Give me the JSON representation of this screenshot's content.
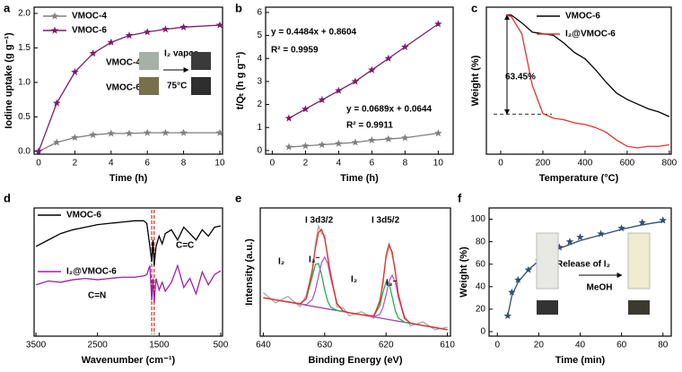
{
  "chart_data": [
    {
      "type": "line",
      "panel": "a",
      "xlabel": "Time (h)",
      "ylabel": "Iodine uptake (g g⁻¹)",
      "x": [
        0,
        1,
        2,
        3,
        4,
        5,
        6,
        7,
        8,
        10
      ],
      "xlim": [
        -0.25,
        10.15
      ],
      "xticks": [
        0,
        2,
        4,
        6,
        8,
        10
      ],
      "ylim": [
        -0.04,
        2.09
      ],
      "yticks": [
        {
          "value": 0,
          "label": "0.0"
        },
        {
          "value": 0.5,
          "label": "0.5"
        },
        {
          "value": 1,
          "label": "1.0"
        },
        {
          "value": 1.5,
          "label": "1.5"
        },
        {
          "value": 2,
          "label": "2.0"
        }
      ],
      "series": [
        {
          "name": "VMOC-4",
          "color": "#7f7f7f",
          "marker": "star",
          "values": [
            0,
            0.13,
            0.2,
            0.24,
            0.26,
            0.26,
            0.27,
            0.27,
            0.27,
            0.27
          ]
        },
        {
          "name": "VMOC-6",
          "color": "#7b1c6b",
          "marker": "star",
          "values": [
            0,
            0.7,
            1.15,
            1.42,
            1.58,
            1.68,
            1.73,
            1.77,
            1.8,
            1.83
          ]
        }
      ],
      "annotations": [
        "VMOC-4",
        "VMOC-6",
        "I₂ vapor",
        "75°C"
      ]
    },
    {
      "type": "line",
      "panel": "b",
      "xlabel": "Time (h)",
      "ylabel": "t/Qₜ (h g g⁻¹)",
      "x": [
        1,
        2,
        3,
        4,
        5,
        6,
        7,
        8,
        10
      ],
      "xlim": [
        -0.4,
        10.9
      ],
      "xticks": [
        0,
        2,
        4,
        6,
        8,
        10
      ],
      "ylim": [
        -0.16,
        6.23
      ],
      "yticks": [
        0,
        1,
        2,
        3,
        4,
        5,
        6
      ],
      "series": [
        {
          "color": "#7b1c6b",
          "marker": "star",
          "values": [
            1.4,
            1.8,
            2.2,
            2.6,
            3.0,
            3.5,
            4.0,
            4.5,
            5.5
          ]
        },
        {
          "color": "#7f7f7f",
          "marker": "star",
          "values": [
            0.15,
            0.2,
            0.25,
            0.3,
            0.35,
            0.45,
            0.5,
            0.55,
            0.75
          ]
        }
      ],
      "annotations": [
        "y = 0.4484x + 0.8604",
        "R² = 0.9959",
        "y = 0.0689x + 0.0644",
        "R² = 0.9911"
      ]
    },
    {
      "type": "line",
      "panel": "c",
      "xlabel": "Temperature (°C)",
      "ylabel": "Weight (%)",
      "x": [
        25,
        50,
        100,
        150,
        200,
        250,
        300,
        350,
        400,
        450,
        500,
        550,
        600,
        650,
        700,
        750,
        800
      ],
      "xlim": [
        -68,
        809
      ],
      "xticks": [
        0,
        200,
        400,
        600,
        800
      ],
      "ylim": [
        11,
        105
      ],
      "hline": 36.55,
      "series": [
        {
          "name": "VMOC-6",
          "color": "#000000",
          "values": [
            100,
            100,
            95,
            89,
            88,
            87,
            82,
            76,
            72,
            65,
            57,
            50,
            46,
            43,
            40,
            38,
            35
          ]
        },
        {
          "name": "I₂@VMOC-6",
          "color": "#e8302a",
          "values": [
            100,
            99,
            88,
            55,
            37,
            34,
            33,
            31,
            30,
            28,
            25,
            20,
            16,
            15,
            16,
            16,
            17
          ]
        }
      ],
      "annotations": [
        "63.45%"
      ]
    },
    {
      "type": "line",
      "panel": "d",
      "xlabel": "Wavenumber (cm⁻¹)",
      "x": [
        3500,
        3300,
        3100,
        2900,
        2700,
        2500,
        2300,
        2100,
        1900,
        1750,
        1700,
        1650,
        1620,
        1600,
        1580,
        1550,
        1500,
        1450,
        1400,
        1300,
        1200,
        1100,
        1000,
        900,
        800,
        700,
        600,
        500
      ],
      "xlim": [
        3530,
        470
      ],
      "xticks": [
        3500,
        2500,
        1500,
        500
      ],
      "ylim": [
        0,
        10
      ],
      "vlines": [
        1620,
        1580
      ],
      "series": [
        {
          "name": "VMOC-6",
          "color": "#000000",
          "values": [
            7.0,
            7.5,
            8.0,
            8.3,
            8.5,
            8.7,
            8.8,
            8.9,
            9.0,
            9.0,
            8.8,
            7.0,
            5.8,
            7.5,
            5.5,
            7.0,
            7.8,
            7.2,
            8.0,
            8.3,
            7.5,
            8.5,
            8.0,
            7.5,
            8.3,
            7.8,
            8.5,
            8.6
          ]
        },
        {
          "name": "I₂@VMOC-6",
          "color": "#a020a0",
          "values": [
            4.0,
            4.3,
            4.2,
            4.4,
            4.5,
            4.4,
            4.5,
            4.6,
            4.6,
            4.7,
            4.8,
            5.5,
            2.8,
            4.5,
            2.6,
            4.5,
            3.6,
            4.2,
            3.5,
            4.2,
            5.5,
            3.8,
            4.5,
            3.3,
            5.0,
            4.0,
            4.8,
            5.1
          ]
        }
      ],
      "annotations": [
        "C=C",
        "C=N"
      ]
    },
    {
      "type": "line",
      "panel": "e",
      "xlabel": "Binding Energy (eV)",
      "ylabel": "Intensity (a.u.)",
      "x": [
        640,
        638,
        636,
        634,
        633,
        632,
        631.5,
        631,
        630.5,
        630,
        629.5,
        629,
        628,
        627,
        626,
        624,
        622,
        621,
        620.5,
        620,
        619.5,
        619,
        618.5,
        618,
        617,
        616,
        614,
        612,
        610
      ],
      "xlim": [
        640.5,
        609.5
      ],
      "xticks": [
        640,
        630,
        620,
        610
      ],
      "ylim": [
        0,
        10
      ],
      "series": [
        {
          "color": "#a9a9a9",
          "values": [
            3.4,
            2.6,
            3.1,
            2.3,
            3.2,
            5.0,
            7.2,
            8.6,
            8.0,
            7.9,
            6.0,
            4.9,
            2.3,
            2.2,
            1.6,
            1.9,
            1.4,
            2.9,
            4.0,
            6.4,
            7.3,
            6.3,
            5.2,
            3.0,
            1.6,
            0.8,
            1.1,
            0.5,
            0.7
          ]
        },
        {
          "color": "#a040a0",
          "x": [
            640,
            610
          ],
          "values": [
            3.0,
            0.5
          ]
        },
        {
          "color": "#22b14c",
          "values": [
            3.0,
            2.83,
            2.67,
            2.53,
            2.89,
            4.69,
            5.6,
            5.66,
            4.8,
            3.61,
            2.71,
            2.26,
            2.01,
            1.92,
            1.83,
            1.67,
            1.57,
            2.39,
            3.42,
            4.24,
            4.09,
            3.07,
            2.01,
            1.41,
            1.09,
            1.0,
            0.83,
            0.67,
            0.5
          ]
        },
        {
          "color": "#b05cc8",
          "values": [
            3.0,
            2.83,
            2.67,
            2.5,
            2.46,
            2.87,
            3.59,
            4.68,
            5.74,
            6.17,
            5.66,
            4.51,
            2.54,
            1.96,
            1.83,
            1.67,
            1.51,
            1.71,
            2.25,
            3.22,
            4.29,
            4.75,
            4.21,
            3.06,
            1.38,
            1.01,
            0.83,
            0.67,
            0.5
          ]
        },
        {
          "color": "#e8302a",
          "values": [
            3.0,
            2.83,
            2.67,
            2.53,
            2.93,
            5.23,
            6.9,
            8.09,
            8.33,
            7.61,
            6.24,
            4.69,
            2.55,
            1.96,
            1.83,
            1.67,
            1.58,
            2.68,
            4.29,
            6.13,
            7.09,
            6.57,
            5.01,
            3.3,
            1.39,
            1.01,
            0.83,
            0.67,
            0.5
          ]
        }
      ],
      "annotations": [
        "I 3d3/2",
        "I 3d5/2",
        "I₂",
        "I₃⁻",
        "I₂",
        "I₃⁻"
      ]
    },
    {
      "type": "scatter",
      "panel": "f",
      "xlabel": "Time (min)",
      "ylabel": "Weight (%)",
      "x": [
        5,
        7,
        10,
        15,
        20,
        25,
        30,
        35,
        40,
        50,
        60,
        70,
        80
      ],
      "xlim": [
        -4,
        84
      ],
      "xticks": [
        0,
        20,
        40,
        60,
        80
      ],
      "ylim": [
        -4,
        110
      ],
      "yticks": [
        0,
        20,
        40,
        60,
        80,
        100
      ],
      "series": [
        {
          "color": "#2f4f6f",
          "marker": "star",
          "line": false,
          "values": [
            14,
            35,
            46,
            55,
            63,
            70,
            75,
            80,
            84,
            87,
            92,
            97,
            99
          ]
        },
        {
          "color": "#2f4f6f",
          "x": [
            5,
            7,
            10,
            15,
            20,
            30,
            40,
            50,
            60,
            70,
            80
          ],
          "values": [
            14,
            32,
            44,
            55,
            63,
            74,
            81,
            86,
            91,
            95,
            98
          ]
        }
      ],
      "annotations": [
        "Release of I₂",
        "MeOH"
      ]
    }
  ]
}
